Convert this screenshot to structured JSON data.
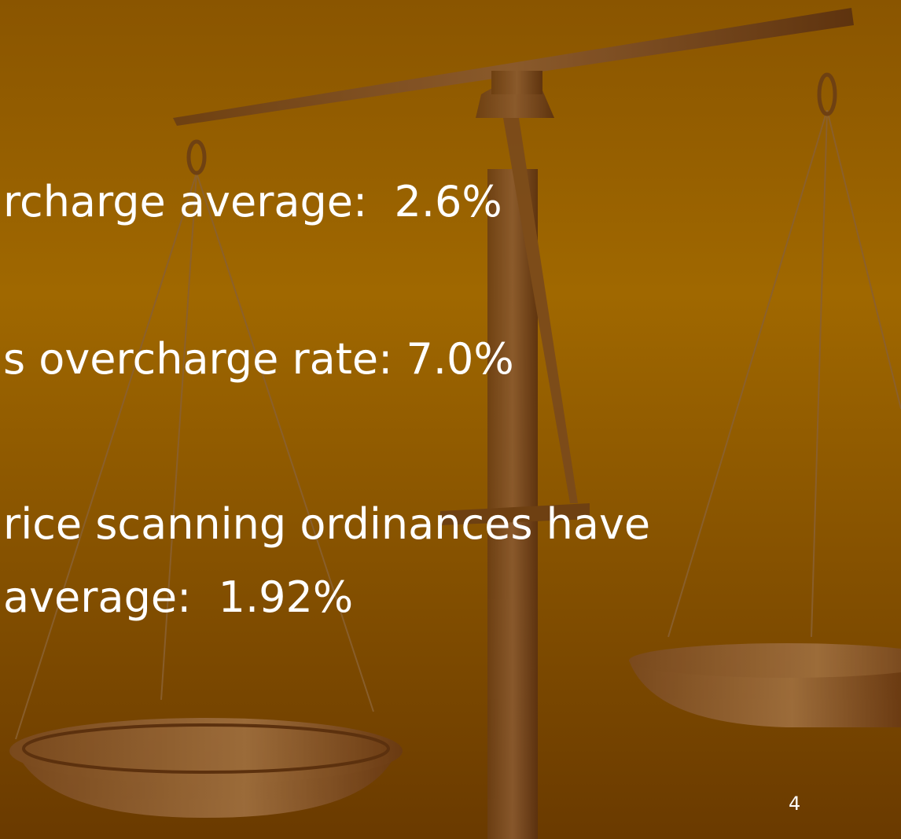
{
  "slide": {
    "bullets": [
      "rcharge average:  2.6%",
      "s overcharge rate: 7.0%",
      "rice scanning ordinances have",
      "average:  1.92%"
    ],
    "page_number": "4"
  }
}
